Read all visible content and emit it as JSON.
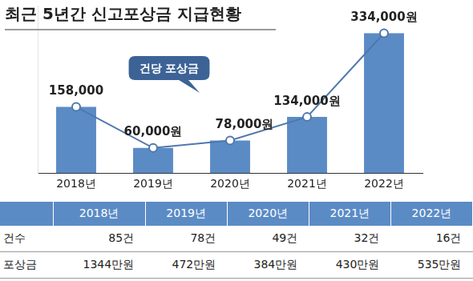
{
  "chart_data": {
    "type": "bar",
    "title": "최근 5년간 신고포상금 지급현황",
    "categories": [
      "2018년",
      "2019년",
      "2020년",
      "2021년",
      "2022년"
    ],
    "series": [
      {
        "type": "bar",
        "color": "#5b8bc5",
        "values": [
          158000,
          60000,
          78000,
          134000,
          334000
        ]
      },
      {
        "type": "line",
        "color": "#4f78ad",
        "marker": "circle",
        "values": [
          158000,
          60000,
          78000,
          134000,
          334000
        ],
        "value_labels": [
          "158,000",
          "60,000원",
          "78,000원",
          "134,000원",
          "334,000원"
        ]
      }
    ],
    "data_labels": true,
    "annotation": "건당 포상금",
    "ylim": [
      0,
      400000
    ],
    "grid": false,
    "tick_labels": "x"
  },
  "table": {
    "columns": [
      "2018년",
      "2019년",
      "2020년",
      "2021년",
      "2022년"
    ],
    "rows": [
      {
        "label": "건수",
        "cells": [
          "85건",
          "78건",
          "49건",
          "32건",
          "16건"
        ]
      },
      {
        "label": "포상금",
        "cells": [
          "1344만원",
          "472만원",
          "384만원",
          "430만원",
          "535만원"
        ]
      }
    ]
  }
}
